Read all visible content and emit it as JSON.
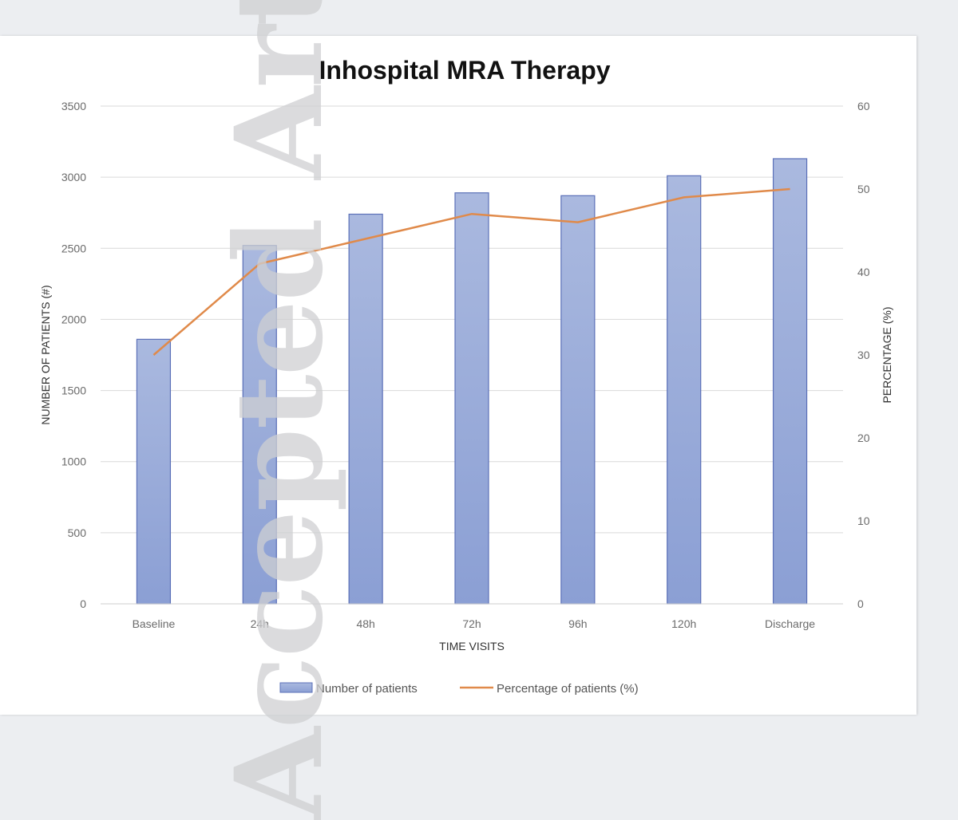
{
  "chart_data": {
    "type": "bar",
    "title": "Inhospital MRA Therapy",
    "xlabel": "TIME VISITS",
    "ylabel": "NUMBER OF PATIENTS (#)",
    "y2label": "PERCENTAGE (%)",
    "categories": [
      "Baseline",
      "24h",
      "48h",
      "72h",
      "96h",
      "120h",
      "Discharge"
    ],
    "ylim": [
      0,
      3500
    ],
    "yticks": [
      "0",
      "500",
      "1000",
      "1500",
      "2000",
      "2500",
      "3000",
      "3500"
    ],
    "y2lim": [
      0,
      60
    ],
    "y2ticks": [
      "0",
      "10",
      "20",
      "30",
      "40",
      "50",
      "60"
    ],
    "grid": true,
    "legend_position": "bottom",
    "series": [
      {
        "name": "Number of patients",
        "kind": "bar",
        "axis": "left",
        "color": "#8fa3d6",
        "values": [
          1860,
          2520,
          2740,
          2890,
          2870,
          3010,
          3130
        ]
      },
      {
        "name": "Percentage of patients (%)",
        "kind": "line",
        "axis": "right",
        "color": "#e08a4a",
        "values": [
          30,
          41,
          44,
          47,
          46,
          49,
          50
        ]
      }
    ]
  },
  "watermark": "Accepted Article"
}
